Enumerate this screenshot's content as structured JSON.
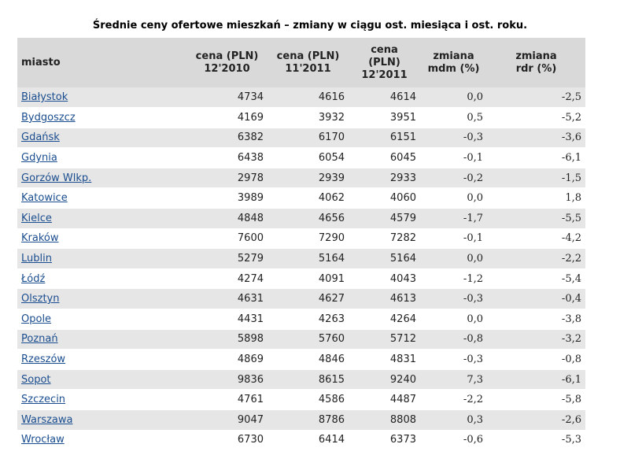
{
  "title": "Średnie ceny ofertowe mieszkań – zmiany w ciągu ost. miesiąca i ost. roku.",
  "headers": {
    "city": "miasto",
    "c2010": "cena (PLN)\n12'2010",
    "c112011": "cena (PLN)\n11'2011",
    "c122011": "cena\n(PLN)\n12'2011",
    "mdm": "zmiana\nmdm (%)",
    "rdr": "zmiana\nrdr (%)"
  },
  "rows": [
    {
      "city": "Białystok",
      "p2010": "4734",
      "p112011": "4616",
      "p122011": "4614",
      "mdm": "0,0",
      "rdr": "-2,5"
    },
    {
      "city": "Bydgoszcz",
      "p2010": "4169",
      "p112011": "3932",
      "p122011": "3951",
      "mdm": "0,5",
      "rdr": "-5,2"
    },
    {
      "city": "Gdańsk",
      "p2010": "6382",
      "p112011": "6170",
      "p122011": "6151",
      "mdm": "-0,3",
      "rdr": "-3,6"
    },
    {
      "city": "Gdynia",
      "p2010": "6438",
      "p112011": "6054",
      "p122011": "6045",
      "mdm": "-0,1",
      "rdr": "-6,1"
    },
    {
      "city": "Gorzów Wlkp.",
      "p2010": "2978",
      "p112011": "2939",
      "p122011": "2933",
      "mdm": "-0,2",
      "rdr": "-1,5"
    },
    {
      "city": "Katowice",
      "p2010": "3989",
      "p112011": "4062",
      "p122011": "4060",
      "mdm": "0,0",
      "rdr": "1,8"
    },
    {
      "city": "Kielce",
      "p2010": "4848",
      "p112011": "4656",
      "p122011": "4579",
      "mdm": "-1,7",
      "rdr": "-5,5"
    },
    {
      "city": "Kraków",
      "p2010": "7600",
      "p112011": "7290",
      "p122011": "7282",
      "mdm": "-0,1",
      "rdr": "-4,2"
    },
    {
      "city": "Lublin",
      "p2010": "5279",
      "p112011": "5164",
      "p122011": "5164",
      "mdm": "0,0",
      "rdr": "-2,2"
    },
    {
      "city": "Łódź",
      "p2010": "4274",
      "p112011": "4091",
      "p122011": "4043",
      "mdm": "-1,2",
      "rdr": "-5,4"
    },
    {
      "city": "Olsztyn",
      "p2010": "4631",
      "p112011": "4627",
      "p122011": "4613",
      "mdm": "-0,3",
      "rdr": "-0,4"
    },
    {
      "city": "Opole",
      "p2010": "4431",
      "p112011": "4263",
      "p122011": "4264",
      "mdm": "0,0",
      "rdr": "-3,8"
    },
    {
      "city": "Poznań",
      "p2010": "5898",
      "p112011": "5760",
      "p122011": "5712",
      "mdm": "-0,8",
      "rdr": "-3,2"
    },
    {
      "city": "Rzeszów",
      "p2010": "4869",
      "p112011": "4846",
      "p122011": "4831",
      "mdm": "-0,3",
      "rdr": "-0,8"
    },
    {
      "city": "Sopot",
      "p2010": "9836",
      "p112011": "8615",
      "p122011": "9240",
      "mdm": "7,3",
      "rdr": "-6,1"
    },
    {
      "city": "Szczecin",
      "p2010": "4761",
      "p112011": "4586",
      "p122011": "4487",
      "mdm": "-2,2",
      "rdr": "-5,8"
    },
    {
      "city": "Warszawa",
      "p2010": "9047",
      "p112011": "8786",
      "p122011": "8808",
      "mdm": "0,3",
      "rdr": "-2,6"
    },
    {
      "city": "Wrocław",
      "p2010": "6730",
      "p112011": "6414",
      "p122011": "6373",
      "mdm": "-0,6",
      "rdr": "-5,3"
    }
  ]
}
